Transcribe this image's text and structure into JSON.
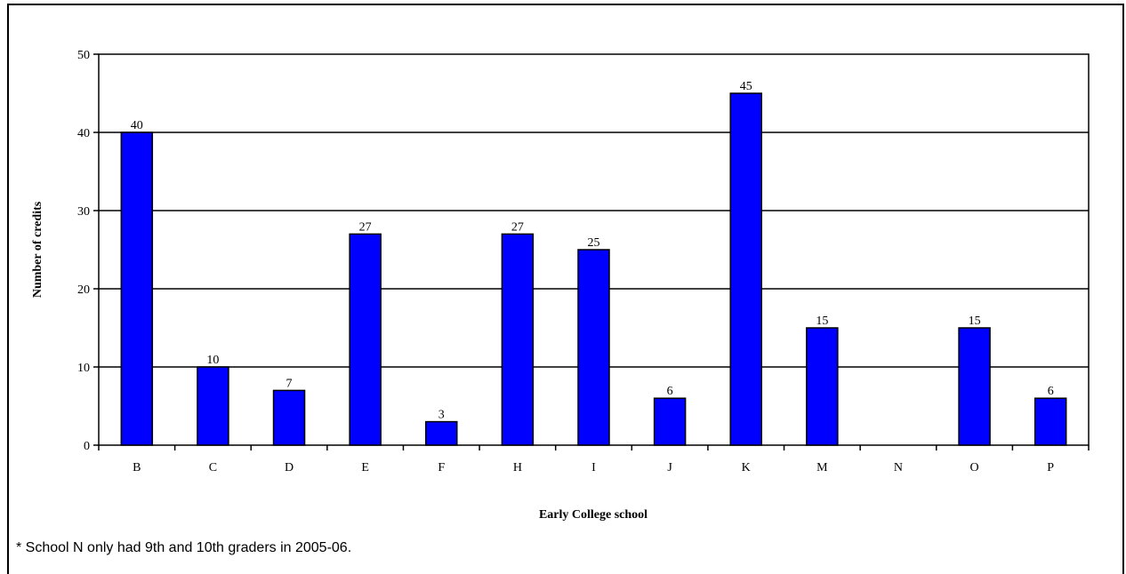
{
  "chart_data": {
    "type": "bar",
    "categories": [
      "B",
      "C",
      "D",
      "E",
      "F",
      "H",
      "I",
      "J",
      "K",
      "M",
      "N",
      "O",
      "P"
    ],
    "values": [
      40,
      10,
      7,
      27,
      3,
      27,
      25,
      6,
      45,
      15,
      null,
      15,
      6
    ],
    "data_labels": [
      "40",
      "10",
      "7",
      "27",
      "3",
      "27",
      "25",
      "6",
      "45",
      "15",
      "",
      "15",
      "6"
    ],
    "xlabel": "Early College school",
    "ylabel": "Number of credits",
    "ylim": [
      0,
      50
    ],
    "yticks": [
      0,
      10,
      20,
      30,
      40,
      50
    ],
    "grid": true,
    "bar_color": "#0000FF"
  },
  "footnote": "* School N only had 9th and 10th graders in 2005-06."
}
